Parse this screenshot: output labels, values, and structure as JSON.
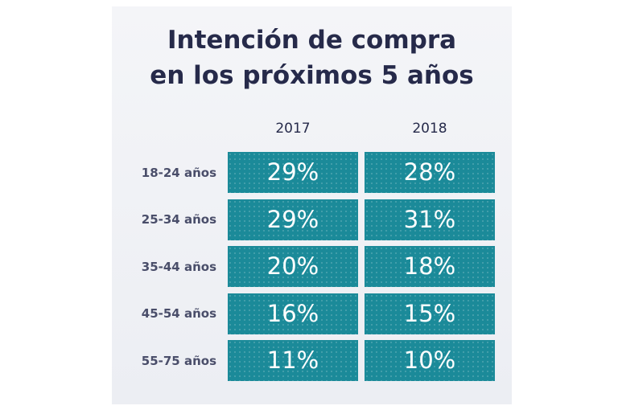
{
  "chart_data": {
    "type": "table",
    "title": "Intención de compra en los próximos 5 años",
    "title_lines": [
      "Intención de compra",
      "en los próximos 5 años"
    ],
    "columns": [
      "2017",
      "2018"
    ],
    "rows": [
      {
        "label": "18-24 años",
        "values": [
          29,
          28
        ]
      },
      {
        "label": "25-34 años",
        "values": [
          29,
          31
        ]
      },
      {
        "label": "35-44 años",
        "values": [
          20,
          18
        ]
      },
      {
        "label": "45-54 años",
        "values": [
          16,
          15
        ]
      },
      {
        "label": "55-75 años",
        "values": [
          11,
          10
        ]
      }
    ],
    "value_suffix": "%",
    "cell_color": "#1b8a99",
    "title_color": "#262a4a",
    "label_color": "#4a4e6a"
  }
}
